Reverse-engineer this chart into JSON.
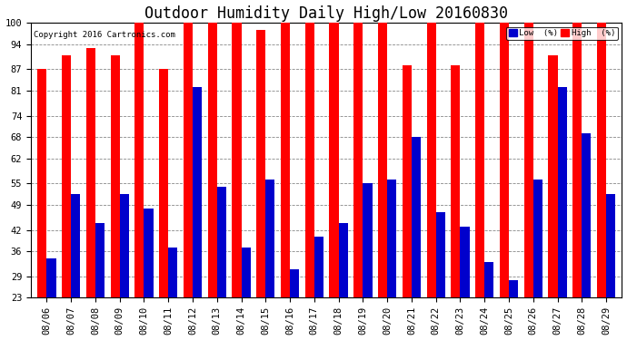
{
  "title": "Outdoor Humidity Daily High/Low 20160830",
  "copyright": "Copyright 2016 Cartronics.com",
  "dates": [
    "08/06",
    "08/07",
    "08/08",
    "08/09",
    "08/10",
    "08/11",
    "08/12",
    "08/13",
    "08/14",
    "08/15",
    "08/16",
    "08/17",
    "08/18",
    "08/19",
    "08/20",
    "08/21",
    "08/22",
    "08/23",
    "08/24",
    "08/25",
    "08/26",
    "08/27",
    "08/28",
    "08/29"
  ],
  "high": [
    87,
    91,
    93,
    91,
    100,
    87,
    100,
    100,
    100,
    98,
    100,
    100,
    100,
    100,
    100,
    88,
    100,
    88,
    100,
    100,
    100,
    91,
    100,
    100
  ],
  "low": [
    34,
    52,
    44,
    52,
    48,
    37,
    82,
    54,
    37,
    56,
    31,
    40,
    44,
    55,
    56,
    68,
    47,
    43,
    33,
    28,
    56,
    82,
    69,
    52
  ],
  "bg_color": "#ffffff",
  "high_color": "#ff0000",
  "low_color": "#0000cc",
  "grid_color": "#888888",
  "yticks": [
    23,
    29,
    36,
    42,
    49,
    55,
    62,
    68,
    74,
    81,
    87,
    94,
    100
  ],
  "ymin": 23,
  "ymax": 100,
  "bar_width": 0.38,
  "title_fontsize": 12,
  "tick_fontsize": 7.5,
  "legend_low_label": "Low  (%)",
  "legend_high_label": "High  (%)"
}
